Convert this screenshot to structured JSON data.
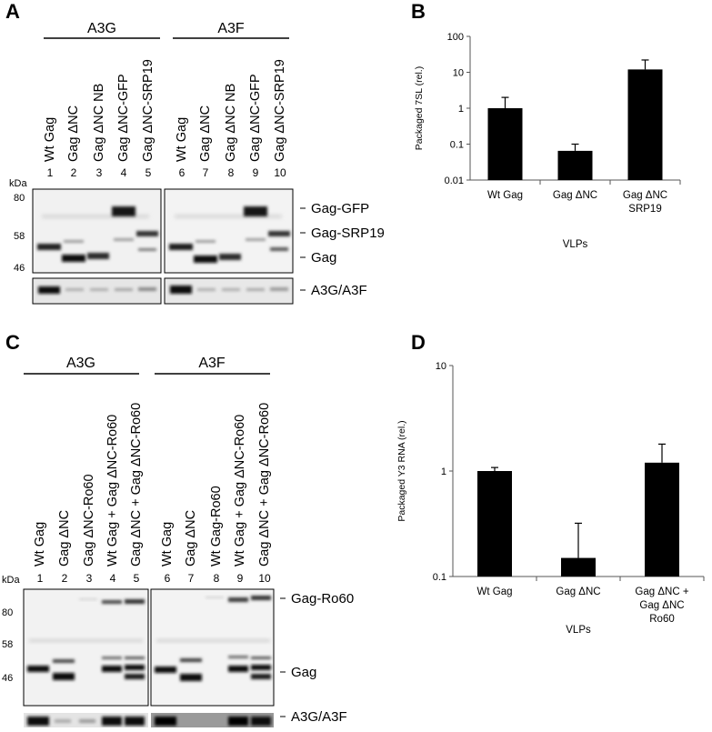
{
  "panel_letters": [
    "A",
    "B",
    "C",
    "D"
  ],
  "blot_A": {
    "groups": [
      "A3G",
      "A3F"
    ],
    "lane_labels": [
      "Wt Gag",
      "Gag ΔNC",
      "Gag ΔNC NB",
      "Gag ΔNC-GFP",
      "Gag ΔNC-SRP19",
      "Wt Gag",
      "Gag ΔNC",
      "Gag ΔNC NB",
      "Gag ΔNC-GFP",
      "Gag ΔNC-SRP19"
    ],
    "lane_numbers": [
      "1",
      "2",
      "3",
      "4",
      "5",
      "6",
      "7",
      "8",
      "9",
      "10"
    ],
    "kda_label": "kDa",
    "markers": [
      "80",
      "58",
      "46"
    ],
    "band_labels": [
      "Gag-GFP",
      "Gag-SRP19",
      "Gag",
      "A3G/A3F"
    ]
  },
  "blot_C": {
    "groups": [
      "A3G",
      "A3F"
    ],
    "lane_labels": [
      "Wt Gag",
      "Gag ΔNC",
      "Gag ΔNC-Ro60",
      "Wt Gag + Gag ΔNC-Ro60",
      "Gag ΔNC + Gag ΔNC-Ro60",
      "Wt Gag",
      "Gag ΔNC",
      "Wt Gag-Ro60",
      "Wt Gag + Gag ΔNC-Ro60",
      "Gag ΔNC + Gag ΔNC-Ro60"
    ],
    "lane_numbers": [
      "1",
      "2",
      "3",
      "4",
      "5",
      "6",
      "7",
      "8",
      "9",
      "10"
    ],
    "kda_label": "kDa",
    "markers": [
      "80",
      "58",
      "46"
    ],
    "band_labels": [
      "Gag-Ro60",
      "Gag",
      "A3G/A3F"
    ]
  },
  "chart_data": [
    {
      "type": "bar",
      "panel": "B",
      "categories": [
        [
          "Wt Gag"
        ],
        [
          "Gag ΔNC"
        ],
        [
          "Gag ΔNC",
          "SRP19"
        ]
      ],
      "values": [
        1.0,
        0.065,
        12.0
      ],
      "errors": [
        1.0,
        0.035,
        10.0
      ],
      "ylabel": "Packaged 7SL (rel.)",
      "xlabel": "VLPs",
      "yscale": "log",
      "ylim": [
        0.01,
        100
      ],
      "yticks": [
        "0.01",
        "0.1",
        "1",
        "10",
        "100"
      ],
      "grid": false,
      "bar_color": "#000000"
    },
    {
      "type": "bar",
      "panel": "D",
      "categories": [
        [
          "Wt Gag"
        ],
        [
          "Gag ΔNC"
        ],
        [
          "Gag ΔNC +",
          "Gag ΔNC",
          "Ro60"
        ]
      ],
      "values": [
        1.0,
        0.15,
        1.2
      ],
      "errors": [
        0.08,
        0.17,
        0.6
      ],
      "ylabel": "Packaged Y3 RNA (rel.)",
      "xlabel": "VLPs",
      "yscale": "log",
      "ylim": [
        0.1,
        10
      ],
      "yticks": [
        "0.1",
        "1",
        "10"
      ],
      "grid": false,
      "bar_color": "#000000"
    }
  ]
}
